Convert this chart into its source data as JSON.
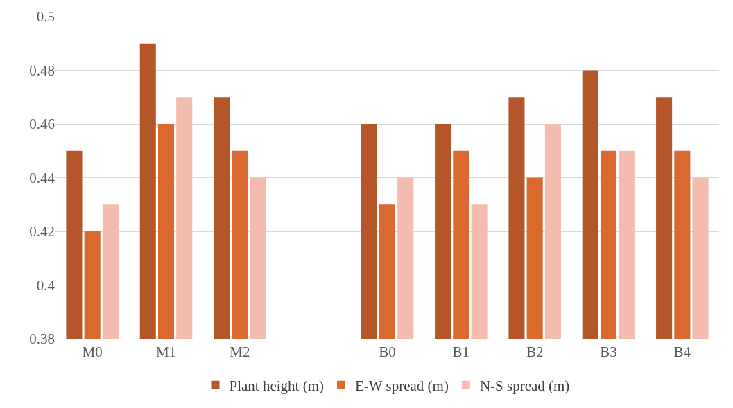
{
  "chart_data": {
    "type": "bar",
    "categories": [
      "M0",
      "M1",
      "M2",
      null,
      "B0",
      "B1",
      "B2",
      "B3",
      "B4"
    ],
    "series": [
      {
        "name": "Plant height (m)",
        "color": "#b5562a",
        "values": [
          0.45,
          0.49,
          0.47,
          null,
          0.46,
          0.46,
          0.47,
          0.48,
          0.47
        ]
      },
      {
        "name": "E-W spread (m)",
        "color": "#d9692f",
        "values": [
          0.42,
          0.46,
          0.45,
          null,
          0.43,
          0.45,
          0.44,
          0.45,
          0.45
        ]
      },
      {
        "name": "N-S spread (m)",
        "color": "#f4bcae",
        "values": [
          0.43,
          0.47,
          0.44,
          null,
          0.44,
          0.43,
          0.46,
          0.45,
          0.44
        ]
      }
    ],
    "ylim": [
      0.38,
      0.5
    ],
    "yticks": [
      0.38,
      {
        "value": 0.4,
        "label": "0.4"
      },
      0.42,
      0.44,
      0.46,
      0.48,
      {
        "value": 0.5,
        "label": "0.5"
      }
    ],
    "grid": "y",
    "legend": "bottom"
  }
}
